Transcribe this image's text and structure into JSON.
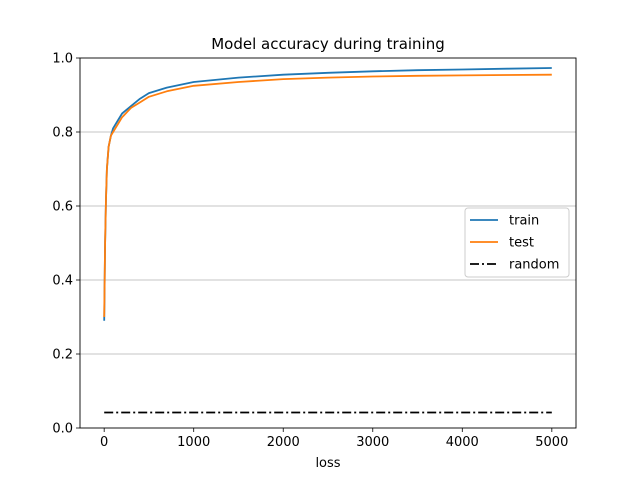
{
  "chart_data": {
    "type": "line",
    "title": "Model accuracy during training",
    "xlabel": "loss",
    "ylabel": "",
    "xlim": [
      -270,
      5270
    ],
    "ylim": [
      0.0,
      1.0
    ],
    "xticks": [
      0,
      1000,
      2000,
      3000,
      4000,
      5000
    ],
    "xtick_labels": [
      "0",
      "1000",
      "2000",
      "3000",
      "4000",
      "5000"
    ],
    "yticks": [
      0.0,
      0.2,
      0.4,
      0.6,
      0.8,
      1.0
    ],
    "ytick_labels": [
      "0.0",
      "0.2",
      "0.4",
      "0.6",
      "0.8",
      "1.0"
    ],
    "grid": "y-axis horizontal lines",
    "legend_position": "center-right",
    "series": [
      {
        "name": "train",
        "color": "#1f77b4",
        "style": "solid",
        "x": [
          0,
          10,
          20,
          30,
          50,
          75,
          100,
          150,
          200,
          300,
          400,
          500,
          700,
          1000,
          1500,
          2000,
          2500,
          3000,
          3500,
          4000,
          4500,
          5000
        ],
        "y": [
          0.29,
          0.5,
          0.62,
          0.7,
          0.76,
          0.79,
          0.81,
          0.83,
          0.85,
          0.87,
          0.89,
          0.905,
          0.92,
          0.935,
          0.947,
          0.955,
          0.96,
          0.964,
          0.967,
          0.969,
          0.971,
          0.973
        ]
      },
      {
        "name": "test",
        "color": "#ff7f0e",
        "style": "solid",
        "x": [
          0,
          10,
          20,
          30,
          50,
          75,
          100,
          150,
          200,
          300,
          400,
          500,
          700,
          1000,
          1500,
          2000,
          2500,
          3000,
          3500,
          4000,
          4500,
          5000
        ],
        "y": [
          0.3,
          0.5,
          0.62,
          0.7,
          0.76,
          0.79,
          0.8,
          0.82,
          0.84,
          0.865,
          0.88,
          0.895,
          0.91,
          0.925,
          0.935,
          0.943,
          0.947,
          0.95,
          0.952,
          0.953,
          0.954,
          0.955
        ]
      },
      {
        "name": "random",
        "color": "#000000",
        "style": "dashdot",
        "x": [
          0,
          5000
        ],
        "y": [
          0.042,
          0.042
        ]
      }
    ]
  }
}
